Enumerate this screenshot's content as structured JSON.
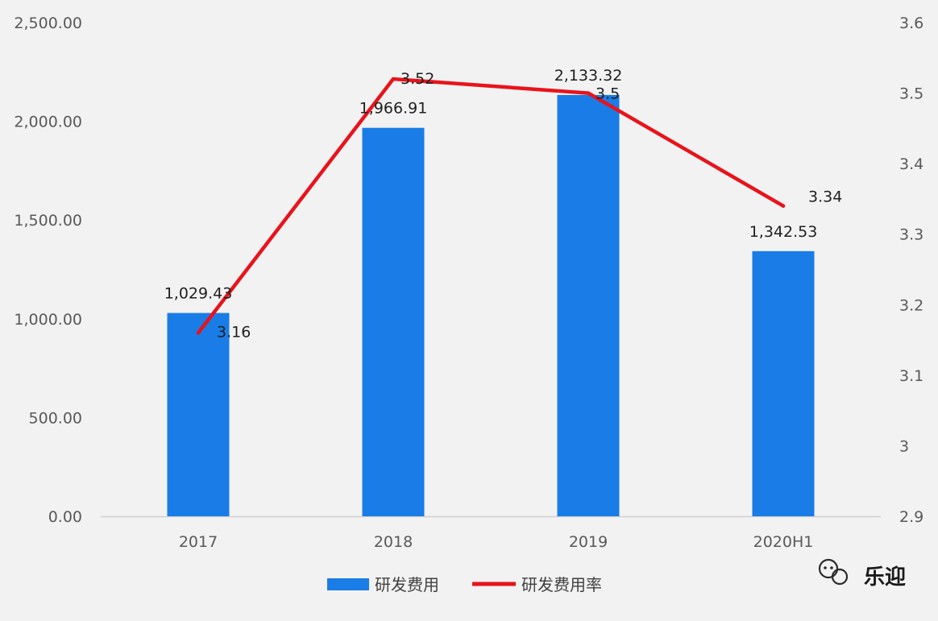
{
  "chart_data": {
    "type": "bar+line",
    "categories": [
      "2017",
      "2018",
      "2019",
      "2020H1"
    ],
    "series": [
      {
        "name": "研发费用",
        "kind": "bar",
        "axis": "left",
        "values": [
          1029.43,
          1966.91,
          2133.32,
          1342.53
        ],
        "labels": [
          "1,029.43",
          "1,966.91",
          "2,133.32",
          "1,342.53"
        ],
        "color": "#1a7ce6"
      },
      {
        "name": "研发费用率",
        "kind": "line",
        "axis": "right",
        "values": [
          3.16,
          3.52,
          3.5,
          3.34
        ],
        "labels": [
          "3.16",
          "3.52",
          "3.5",
          "3.34"
        ],
        "color": "#e8131b"
      }
    ],
    "y_left": {
      "ylim": [
        0,
        2500
      ],
      "ticks": [
        0,
        500,
        1000,
        1500,
        2000,
        2500
      ],
      "tick_labels": [
        "0.00",
        "500.00",
        "1,000.00",
        "1,500.00",
        "2,000.00",
        "2,500.00"
      ]
    },
    "y_right": {
      "ylim": [
        2.9,
        3.6
      ],
      "ticks": [
        2.9,
        3,
        3.1,
        3.2,
        3.3,
        3.4,
        3.5,
        3.6
      ],
      "tick_labels": [
        "2.9",
        "3",
        "3.1",
        "3.2",
        "3.3",
        "3.4",
        "3.5",
        "3.6"
      ]
    },
    "grid": false,
    "legend_position": "bottom"
  },
  "watermark": {
    "text": "乐迎",
    "icon": "wechat-icon"
  }
}
